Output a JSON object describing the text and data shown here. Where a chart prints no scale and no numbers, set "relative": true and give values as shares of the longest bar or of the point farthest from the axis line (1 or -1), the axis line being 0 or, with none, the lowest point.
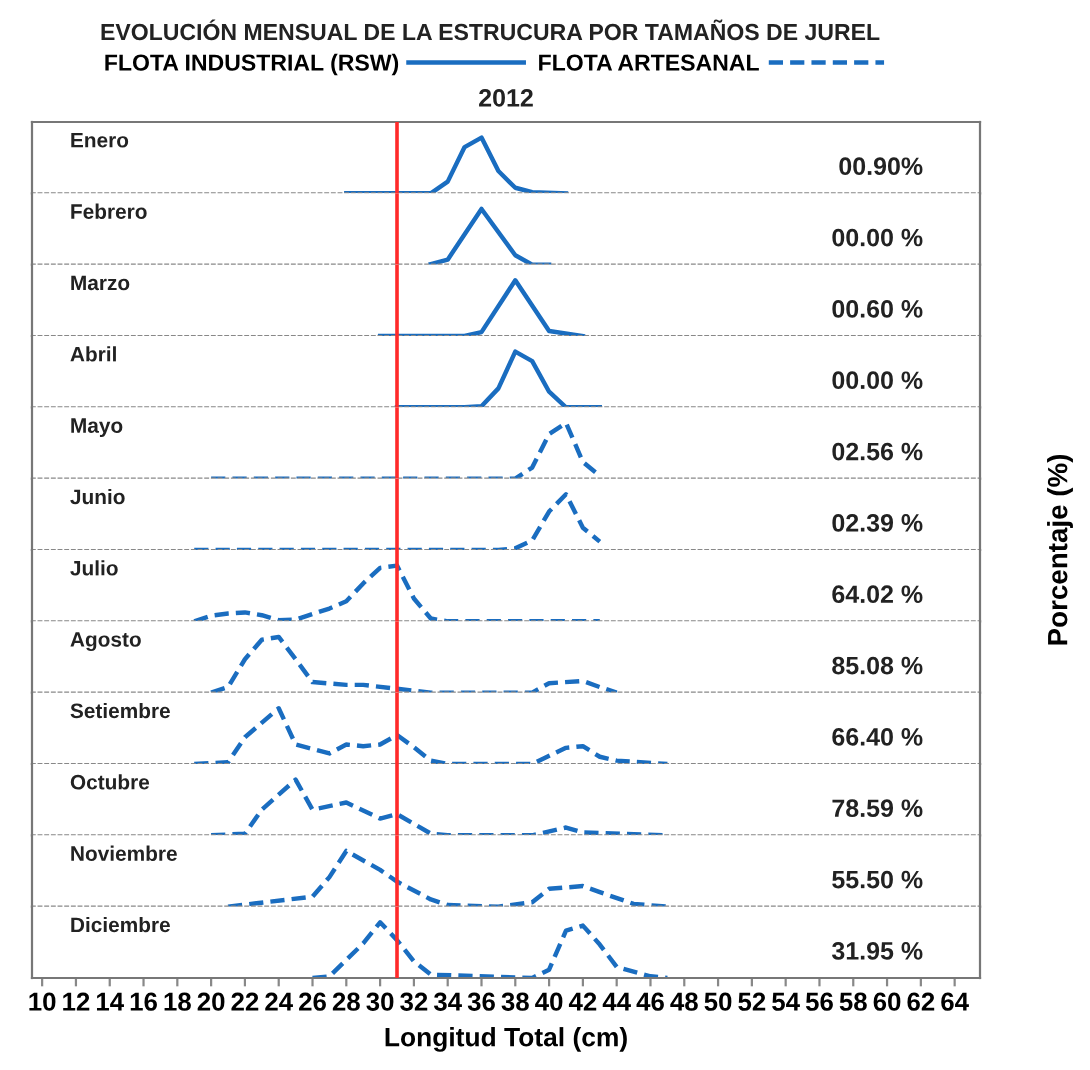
{
  "chart_data": [
    {
      "type": "line",
      "relative": true,
      "title": "EVOLUCIÓN MENSUAL DE LA ESTRUCURA POR TAMAÑOS DE JUREL",
      "subtitle": "2012",
      "legend": "top",
      "tick_labels": false,
      "xlim": [
        9.4,
        65.5
      ],
      "annotations": [
        "Enero",
        "00.90%"
      ],
      "ref_lines": [
        {
          "axis": "x",
          "value": 31,
          "color": "#ff2a2a"
        }
      ],
      "series": [
        {
          "name": "FLOTA INDUSTRIAL (RSW)",
          "color": "#1a6dc0",
          "line_style": "solid",
          "x": [
            28,
            33,
            34,
            35,
            36,
            37,
            38,
            39,
            41
          ],
          "values": [
            0,
            0,
            0.21,
            0.83,
            1,
            0.4,
            0.1,
            0.02,
            0
          ]
        }
      ]
    },
    {
      "type": "line",
      "relative": true,
      "tick_labels": false,
      "xlim": [
        9.4,
        65.5
      ],
      "annotations": [
        "Febrero",
        "00.00 %"
      ],
      "ref_lines": [
        {
          "axis": "x",
          "value": 31,
          "color": "#ff2a2a"
        }
      ],
      "series": [
        {
          "name": "FLOTA INDUSTRIAL (RSW)",
          "color": "#1a6dc0",
          "line_style": "solid",
          "x": [
            33,
            34,
            36,
            38,
            39,
            40
          ],
          "values": [
            0.01,
            0.09,
            1,
            0.17,
            0,
            0
          ]
        }
      ]
    },
    {
      "type": "line",
      "relative": true,
      "tick_labels": false,
      "xlim": [
        9.4,
        65.5
      ],
      "annotations": [
        "Marzo",
        "00.60 %"
      ],
      "ref_lines": [
        {
          "axis": "x",
          "value": 31,
          "color": "#ff2a2a"
        }
      ],
      "series": [
        {
          "name": "FLOTA INDUSTRIAL (RSW)",
          "color": "#1a6dc0",
          "line_style": "solid",
          "x": [
            30,
            35,
            36,
            38,
            40,
            42
          ],
          "values": [
            0,
            0,
            0.07,
            1,
            0.09,
            0
          ]
        }
      ]
    },
    {
      "type": "line",
      "relative": true,
      "tick_labels": false,
      "xlim": [
        9.4,
        65.5
      ],
      "annotations": [
        "Abril",
        "00.00 %"
      ],
      "ref_lines": [
        {
          "axis": "x",
          "value": 31,
          "color": "#ff2a2a"
        }
      ],
      "series": [
        {
          "name": "FLOTA INDUSTRIAL (RSW)",
          "color": "#1a6dc0",
          "line_style": "solid",
          "x": [
            31,
            35,
            36,
            37,
            38,
            39,
            40,
            41,
            43
          ],
          "values": [
            0,
            0,
            0.02,
            0.34,
            1,
            0.83,
            0.28,
            0,
            0
          ]
        }
      ]
    },
    {
      "type": "line",
      "relative": true,
      "tick_labels": false,
      "xlim": [
        9.4,
        65.5
      ],
      "annotations": [
        "Mayo",
        "02.56 %"
      ],
      "ref_lines": [
        {
          "axis": "x",
          "value": 31,
          "color": "#ff2a2a"
        }
      ],
      "series": [
        {
          "name": "FLOTA ARTESANAL",
          "color": "#1a6dc0",
          "line_style": "dashed",
          "x": [
            20,
            38,
            39,
            40,
            41,
            42,
            43
          ],
          "values": [
            0,
            0,
            0.2,
            0.8,
            1,
            0.3,
            0.05
          ]
        }
      ]
    },
    {
      "type": "line",
      "relative": true,
      "tick_labels": false,
      "xlim": [
        9.4,
        65.5
      ],
      "ylabel": "Porcentaje (%)",
      "annotations": [
        "Junio",
        "02.39 %"
      ],
      "ref_lines": [
        {
          "axis": "x",
          "value": 31,
          "color": "#ff2a2a"
        }
      ],
      "series": [
        {
          "name": "FLOTA ARTESANAL",
          "color": "#1a6dc0",
          "line_style": "dashed",
          "x": [
            19,
            37,
            38,
            39,
            40,
            41,
            42,
            43
          ],
          "values": [
            0,
            0,
            0.03,
            0.17,
            0.69,
            1,
            0.4,
            0.15
          ]
        }
      ]
    },
    {
      "type": "line",
      "relative": true,
      "tick_labels": false,
      "xlim": [
        9.4,
        65.5
      ],
      "annotations": [
        "Julio",
        "64.02 %"
      ],
      "ref_lines": [
        {
          "axis": "x",
          "value": 31,
          "color": "#ff2a2a"
        }
      ],
      "series": [
        {
          "name": "FLOTA ARTESANAL",
          "color": "#1a6dc0",
          "line_style": "dashed",
          "x": [
            19,
            20,
            21,
            22,
            23,
            24,
            25,
            27,
            28,
            29,
            30,
            31,
            32,
            33,
            34,
            43
          ],
          "values": [
            0,
            0.1,
            0.14,
            0.16,
            0.11,
            0.02,
            0.03,
            0.23,
            0.36,
            0.68,
            0.96,
            1,
            0.41,
            0.05,
            0,
            0
          ]
        }
      ]
    },
    {
      "type": "line",
      "relative": true,
      "tick_labels": false,
      "xlim": [
        9.4,
        65.5
      ],
      "annotations": [
        "Agosto",
        "85.08 %"
      ],
      "ref_lines": [
        {
          "axis": "x",
          "value": 31,
          "color": "#ff2a2a"
        }
      ],
      "series": [
        {
          "name": "FLOTA ARTESANAL",
          "color": "#1a6dc0",
          "line_style": "dashed",
          "x": [
            20,
            21,
            22,
            23,
            24,
            25,
            26,
            28,
            29,
            31,
            33,
            39,
            40,
            42,
            43,
            44
          ],
          "values": [
            0,
            0.1,
            0.6,
            0.95,
            1,
            0.6,
            0.19,
            0.14,
            0.14,
            0.07,
            0,
            0,
            0.17,
            0.21,
            0.1,
            0
          ]
        }
      ]
    },
    {
      "type": "line",
      "relative": true,
      "tick_labels": false,
      "xlim": [
        9.4,
        65.5
      ],
      "annotations": [
        "Setiembre",
        "66.40 %"
      ],
      "ref_lines": [
        {
          "axis": "x",
          "value": 31,
          "color": "#ff2a2a"
        }
      ],
      "series": [
        {
          "name": "FLOTA ARTESANAL",
          "color": "#1a6dc0",
          "line_style": "dashed",
          "x": [
            19,
            21,
            22,
            24,
            25,
            27,
            28,
            29,
            30,
            31,
            32,
            33,
            34,
            39,
            41,
            42,
            43,
            44,
            47
          ],
          "values": [
            0,
            0.03,
            0.48,
            1,
            0.35,
            0.19,
            0.35,
            0.32,
            0.35,
            0.52,
            0.3,
            0.06,
            0,
            0,
            0.29,
            0.32,
            0.13,
            0.06,
            0
          ]
        }
      ]
    },
    {
      "type": "line",
      "relative": true,
      "tick_labels": false,
      "xlim": [
        9.4,
        65.5
      ],
      "annotations": [
        "Octubre",
        "78.59 %"
      ],
      "ref_lines": [
        {
          "axis": "x",
          "value": 31,
          "color": "#ff2a2a"
        }
      ],
      "series": [
        {
          "name": "FLOTA ARTESANAL",
          "color": "#1a6dc0",
          "line_style": "dashed",
          "x": [
            20,
            22,
            23,
            25,
            26,
            28,
            30,
            31,
            33,
            34,
            39,
            41,
            42,
            47
          ],
          "values": [
            0,
            0.03,
            0.46,
            1,
            0.46,
            0.59,
            0.3,
            0.38,
            0.03,
            0,
            0,
            0.14,
            0.05,
            0
          ]
        }
      ]
    },
    {
      "type": "line",
      "relative": true,
      "tick_labels": false,
      "xlim": [
        9.4,
        65.5
      ],
      "annotations": [
        "Noviembre",
        "55.50 %"
      ],
      "ref_lines": [
        {
          "axis": "x",
          "value": 31,
          "color": "#ff2a2a"
        }
      ],
      "series": [
        {
          "name": "FLOTA ARTESANAL",
          "color": "#1a6dc0",
          "line_style": "dashed",
          "x": [
            21,
            26,
            27,
            28,
            30,
            31,
            33,
            34,
            37,
            39,
            40,
            42,
            43,
            45,
            47
          ],
          "values": [
            0,
            0.18,
            0.53,
            1,
            0.66,
            0.45,
            0.13,
            0.03,
            0,
            0.08,
            0.32,
            0.37,
            0.26,
            0.05,
            0
          ]
        }
      ]
    },
    {
      "type": "line",
      "relative": true,
      "tick_labels": "x",
      "xlim": [
        9.4,
        65.5
      ],
      "xticks": [
        10,
        12,
        14,
        16,
        18,
        20,
        22,
        24,
        26,
        28,
        30,
        32,
        34,
        36,
        38,
        40,
        42,
        44,
        46,
        48,
        50,
        52,
        54,
        56,
        58,
        60,
        62,
        64
      ],
      "xlabel": "Longitud Total (cm)",
      "annotations": [
        "Diciembre",
        "31.95 %"
      ],
      "ref_lines": [
        {
          "axis": "x",
          "value": 31,
          "color": "#ff2a2a"
        }
      ],
      "series": [
        {
          "name": "FLOTA ARTESANAL",
          "color": "#1a6dc0",
          "line_style": "dashed",
          "x": [
            26,
            27,
            29,
            30,
            31,
            32,
            33,
            39,
            40,
            41,
            42,
            43,
            44,
            46,
            47
          ],
          "values": [
            0,
            0.03,
            0.62,
            1,
            0.68,
            0.3,
            0.06,
            0,
            0.15,
            0.85,
            0.94,
            0.6,
            0.2,
            0.03,
            0
          ]
        }
      ]
    }
  ]
}
